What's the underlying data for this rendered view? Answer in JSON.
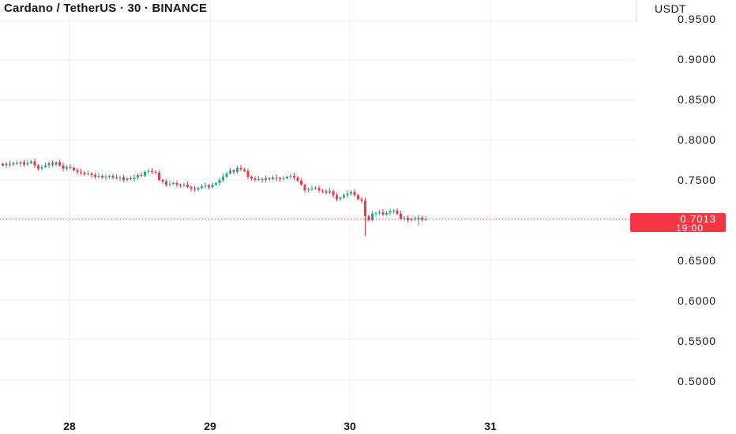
{
  "header": {
    "title": "Cardano / TetherUS · 30 · BINANCE",
    "unit": "USDT"
  },
  "colors": {
    "up": "#26a69a",
    "down": "#f23645",
    "grid": "#eceef2",
    "text": "#131722",
    "price_line": "#f23645",
    "label_bg": "#f23645"
  },
  "chart_data": {
    "type": "candlestick",
    "symbol": "ADA/USDT",
    "interval": "30",
    "exchange": "BINANCE",
    "y_ticks": [
      "0.9500",
      "0.9000",
      "0.8500",
      "0.8000",
      "0.7500",
      "0.6500",
      "0.6000",
      "0.5500",
      "0.5000"
    ],
    "x_ticks": [
      "28",
      "29",
      "30",
      "31"
    ],
    "last_price": "0.7013",
    "countdown": "19:00",
    "grid": true,
    "closes": [
      0.768,
      0.77,
      0.769,
      0.771,
      0.77,
      0.772,
      0.769,
      0.771,
      0.773,
      0.768,
      0.764,
      0.766,
      0.768,
      0.771,
      0.769,
      0.772,
      0.768,
      0.764,
      0.766,
      0.765,
      0.762,
      0.76,
      0.759,
      0.757,
      0.758,
      0.756,
      0.754,
      0.755,
      0.753,
      0.754,
      0.755,
      0.753,
      0.752,
      0.753,
      0.75,
      0.752,
      0.751,
      0.753,
      0.756,
      0.755,
      0.76,
      0.761,
      0.76,
      0.759,
      0.75,
      0.748,
      0.744,
      0.745,
      0.746,
      0.744,
      0.743,
      0.744,
      0.741,
      0.739,
      0.738,
      0.74,
      0.742,
      0.743,
      0.741,
      0.744,
      0.746,
      0.75,
      0.754,
      0.758,
      0.762,
      0.76,
      0.765,
      0.763,
      0.761,
      0.754,
      0.752,
      0.75,
      0.751,
      0.75,
      0.752,
      0.751,
      0.753,
      0.752,
      0.751,
      0.752,
      0.754,
      0.755,
      0.753,
      0.749,
      0.744,
      0.737,
      0.738,
      0.739,
      0.74,
      0.737,
      0.736,
      0.734,
      0.736,
      0.731,
      0.726,
      0.728,
      0.731,
      0.733,
      0.735,
      0.731,
      0.726,
      0.724,
      0.705,
      0.7,
      0.708,
      0.709,
      0.71,
      0.707,
      0.709,
      0.711,
      0.712,
      0.708,
      0.702,
      0.703,
      0.7,
      0.702,
      0.701,
      0.703,
      0.701,
      0.7013
    ]
  }
}
